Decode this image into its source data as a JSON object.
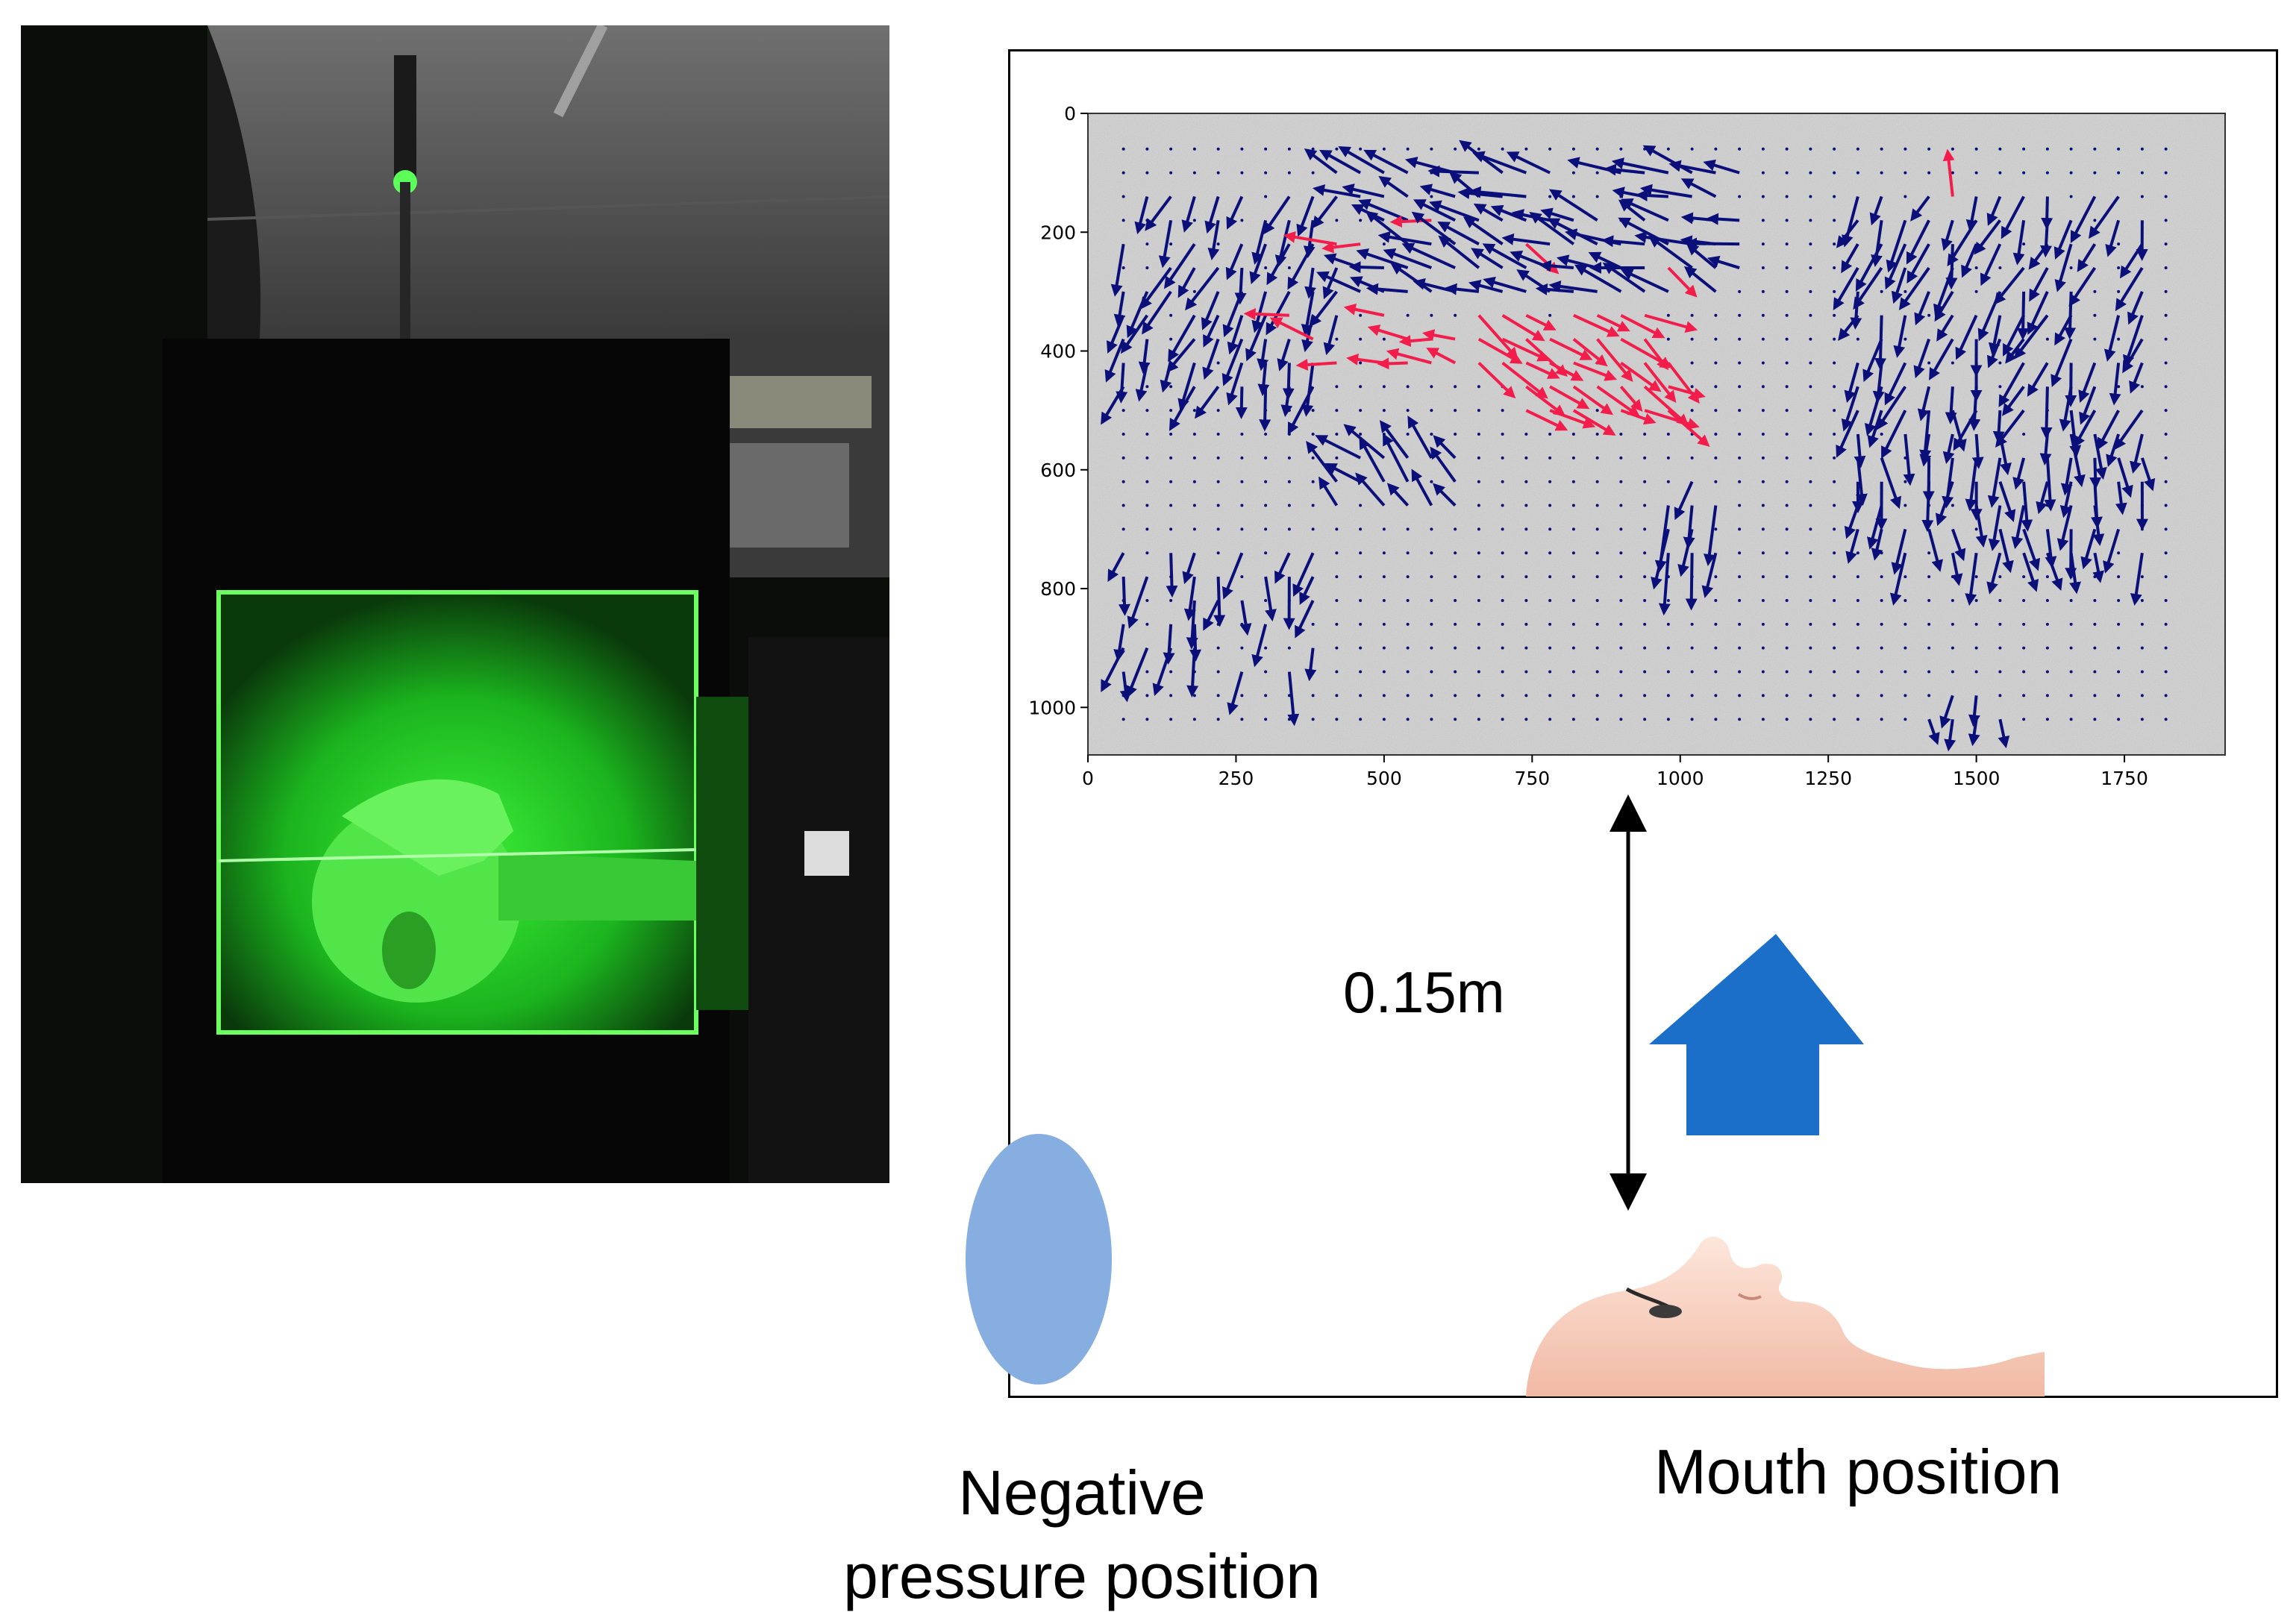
{
  "diagram": {
    "distance_label": "0.15m",
    "negative_pressure_label": "Negative\npressure position",
    "mouth_label": "Mouth position",
    "colors": {
      "vector_normal": "#0b0f7a",
      "vector_highlight": "#f21d4a",
      "negative_pressure_region": "#86aee0",
      "airflow_arrow": "#1c6fc8",
      "laser_green": "#22e02a"
    },
    "icons": {
      "photo": "laser-sheet-experiment-photo",
      "head": "mannequin-head-icon",
      "airflow": "up-arrow-icon",
      "distance": "double-headed-arrow-icon"
    }
  },
  "chart_data": {
    "type": "scatter",
    "title": "",
    "xlabel": "",
    "ylabel": "",
    "xlim": [
      0,
      1920
    ],
    "ylim": [
      1080,
      0
    ],
    "xticks": [
      "0",
      "250",
      "500",
      "750",
      "1000",
      "1250",
      "1500",
      "1750"
    ],
    "yticks": [
      "0",
      "200",
      "400",
      "600",
      "800",
      "1000"
    ],
    "grid_spacing": 40,
    "legend": "none"
  }
}
